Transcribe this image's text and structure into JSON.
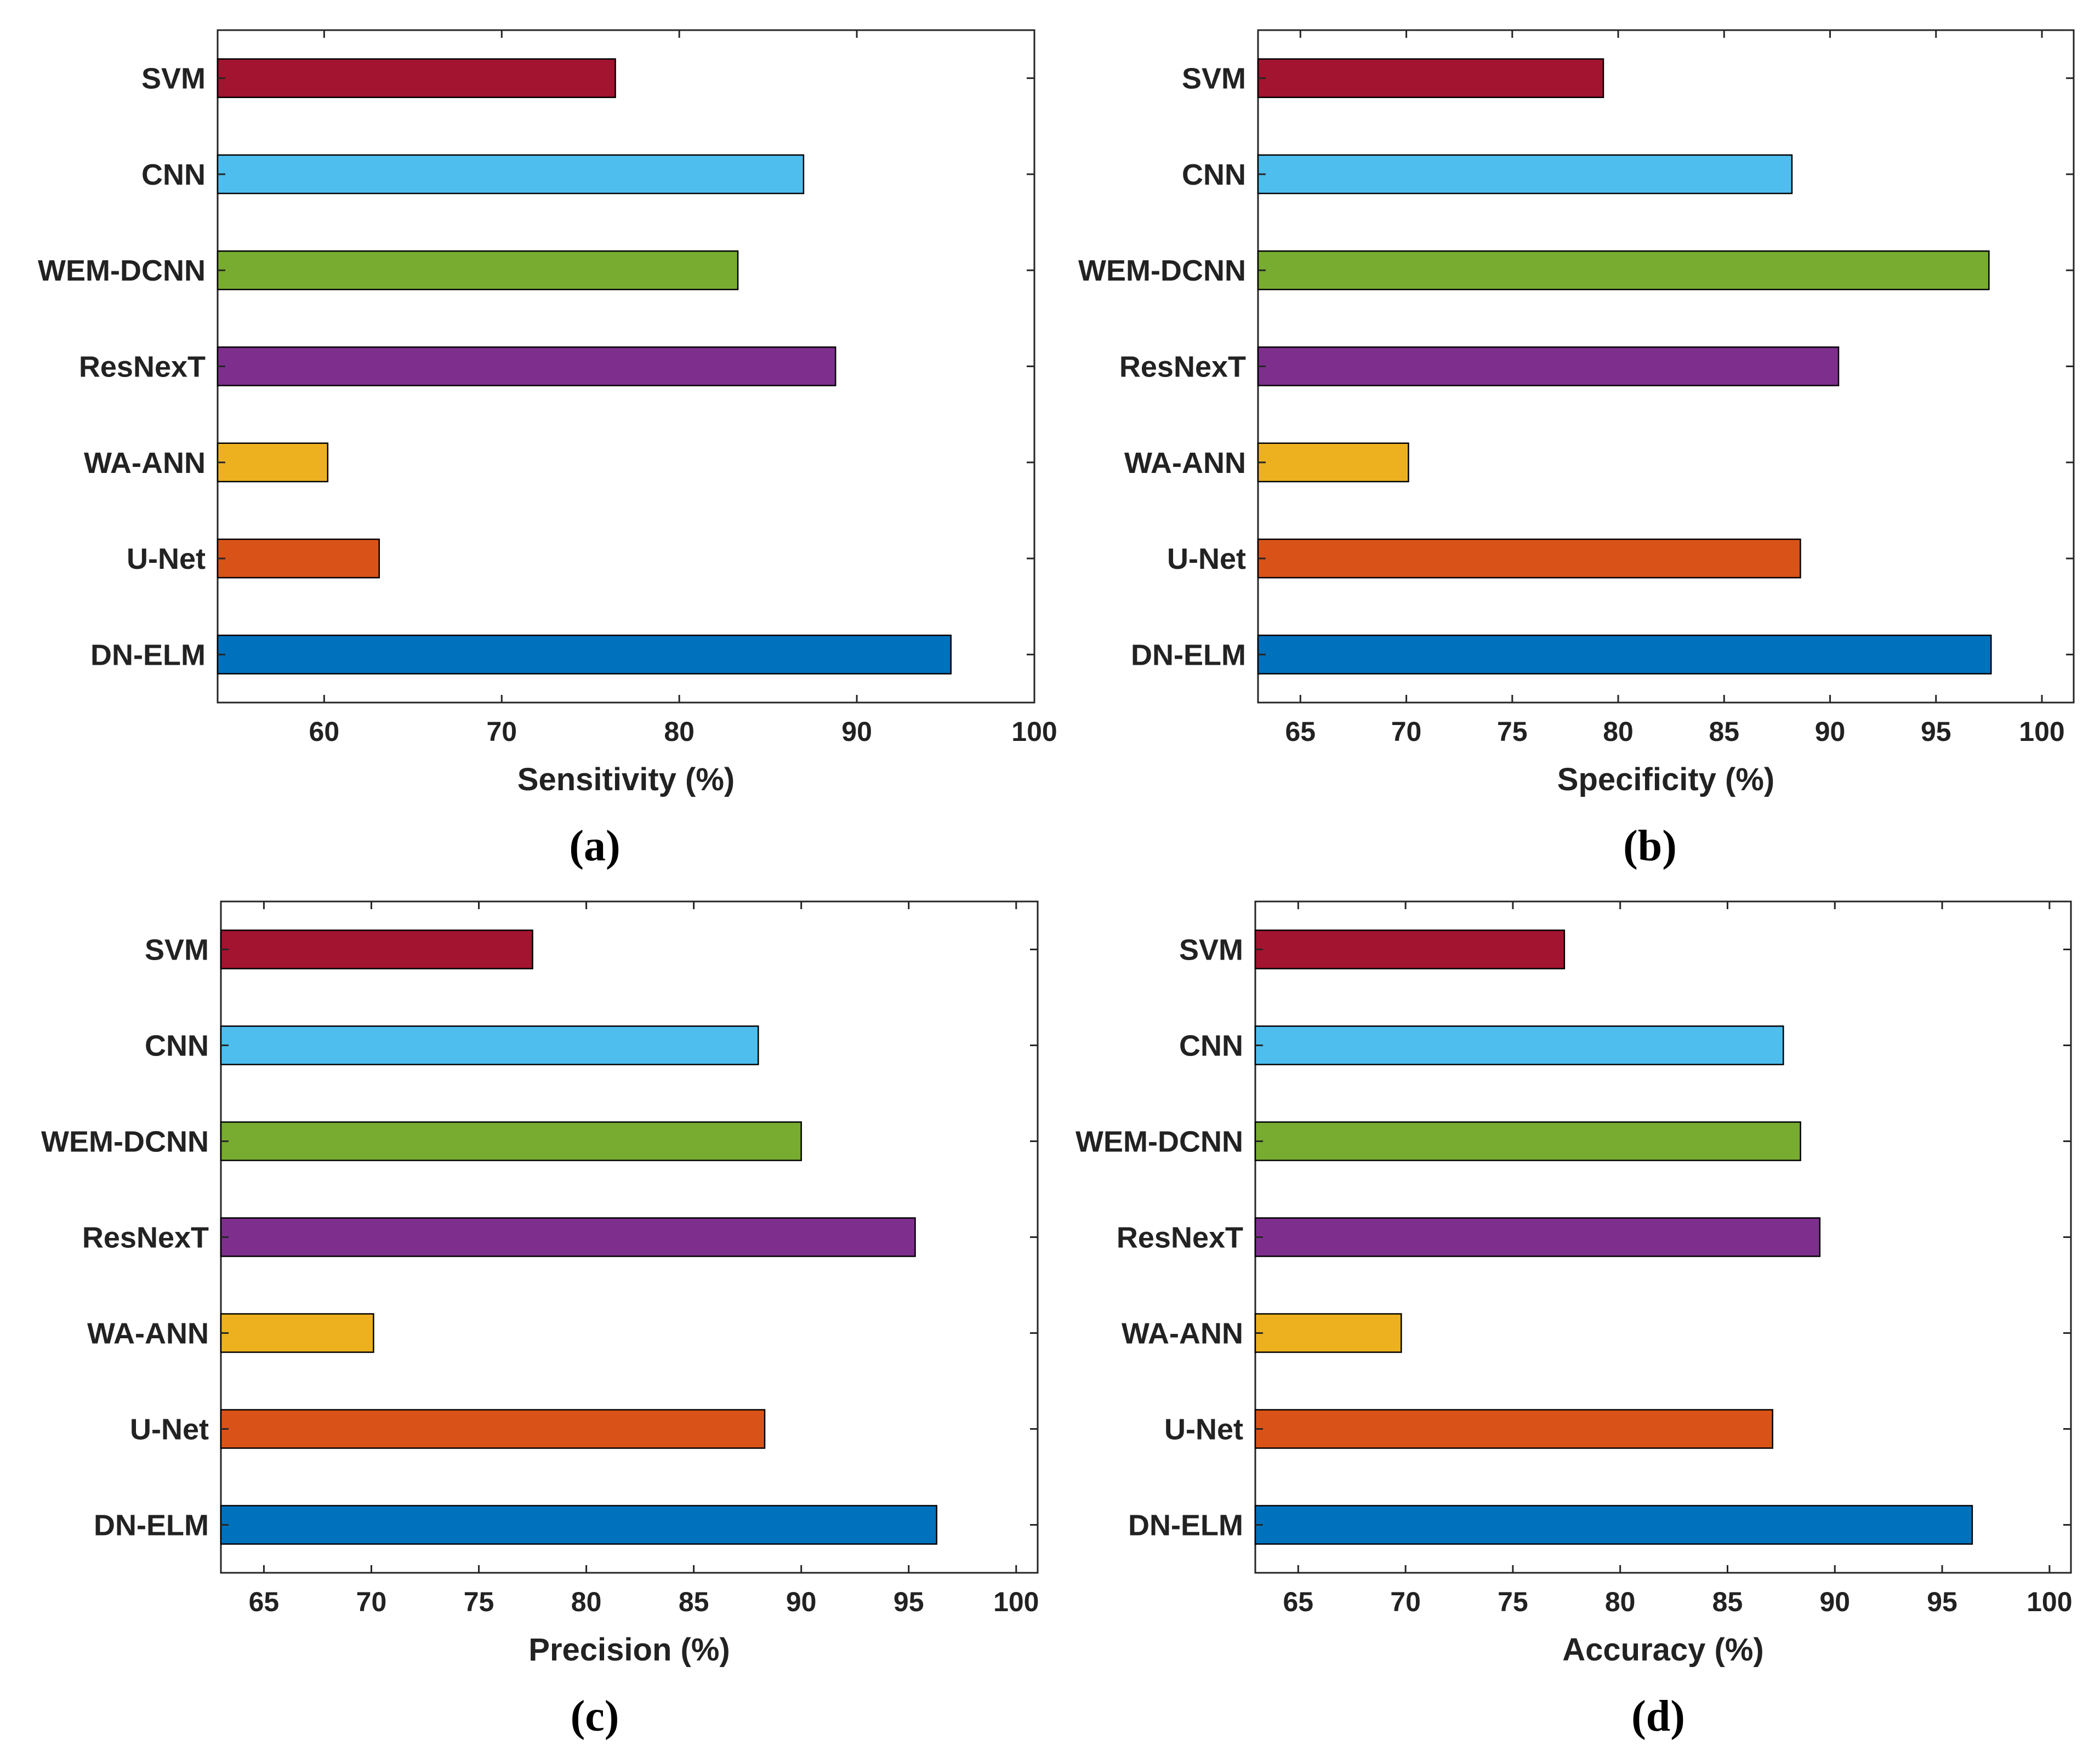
{
  "chart_data": [
    {
      "type": "bar",
      "orientation": "horizontal",
      "panel_label": "(a)",
      "xlabel": "Sensitivity (%)",
      "xlim": [
        54,
        100
      ],
      "xticks": [
        60,
        70,
        80,
        90,
        100
      ],
      "categories": [
        "SVM",
        "CNN",
        "WEM-DCNN",
        "ResNexT",
        "WA-ANN",
        "U-Net",
        "DN-ELM"
      ],
      "values": [
        76.4,
        87.0,
        83.3,
        88.8,
        60.2,
        63.1,
        95.3
      ],
      "colors": [
        "#A2142F",
        "#4DBEEE",
        "#77AC30",
        "#7E2F8E",
        "#EDB120",
        "#D95319",
        "#0072BD"
      ]
    },
    {
      "type": "bar",
      "orientation": "horizontal",
      "panel_label": "(b)",
      "xlabel": "Specificity (%)",
      "xlim": [
        63,
        101.5
      ],
      "xticks": [
        65,
        70,
        75,
        80,
        85,
        90,
        95,
        100
      ],
      "categories": [
        "SVM",
        "CNN",
        "WEM-DCNN",
        "ResNexT",
        "WA-ANN",
        "U-Net",
        "DN-ELM"
      ],
      "values": [
        79.3,
        88.2,
        97.5,
        90.4,
        70.1,
        88.6,
        97.6
      ],
      "colors": [
        "#A2142F",
        "#4DBEEE",
        "#77AC30",
        "#7E2F8E",
        "#EDB120",
        "#D95319",
        "#0072BD"
      ]
    },
    {
      "type": "bar",
      "orientation": "horizontal",
      "panel_label": "(c)",
      "xlabel": "Precision (%)",
      "xlim": [
        63,
        101
      ],
      "xticks": [
        65,
        70,
        75,
        80,
        85,
        90,
        95,
        100
      ],
      "categories": [
        "SVM",
        "CNN",
        "WEM-DCNN",
        "ResNexT",
        "WA-ANN",
        "U-Net",
        "DN-ELM"
      ],
      "values": [
        77.5,
        88.0,
        90.0,
        95.3,
        70.1,
        88.3,
        96.3
      ],
      "colors": [
        "#A2142F",
        "#4DBEEE",
        "#77AC30",
        "#7E2F8E",
        "#EDB120",
        "#D95319",
        "#0072BD"
      ]
    },
    {
      "type": "bar",
      "orientation": "horizontal",
      "panel_label": "(d)",
      "xlabel": "Accuracy (%)",
      "xlim": [
        63,
        101
      ],
      "xticks": [
        65,
        70,
        75,
        80,
        85,
        90,
        95,
        100
      ],
      "categories": [
        "SVM",
        "CNN",
        "WEM-DCNN",
        "ResNexT",
        "WA-ANN",
        "U-Net",
        "DN-ELM"
      ],
      "values": [
        77.4,
        87.6,
        88.4,
        89.3,
        69.8,
        87.1,
        96.4
      ],
      "colors": [
        "#A2142F",
        "#4DBEEE",
        "#77AC30",
        "#7E2F8E",
        "#EDB120",
        "#D95319",
        "#0072BD"
      ]
    }
  ]
}
